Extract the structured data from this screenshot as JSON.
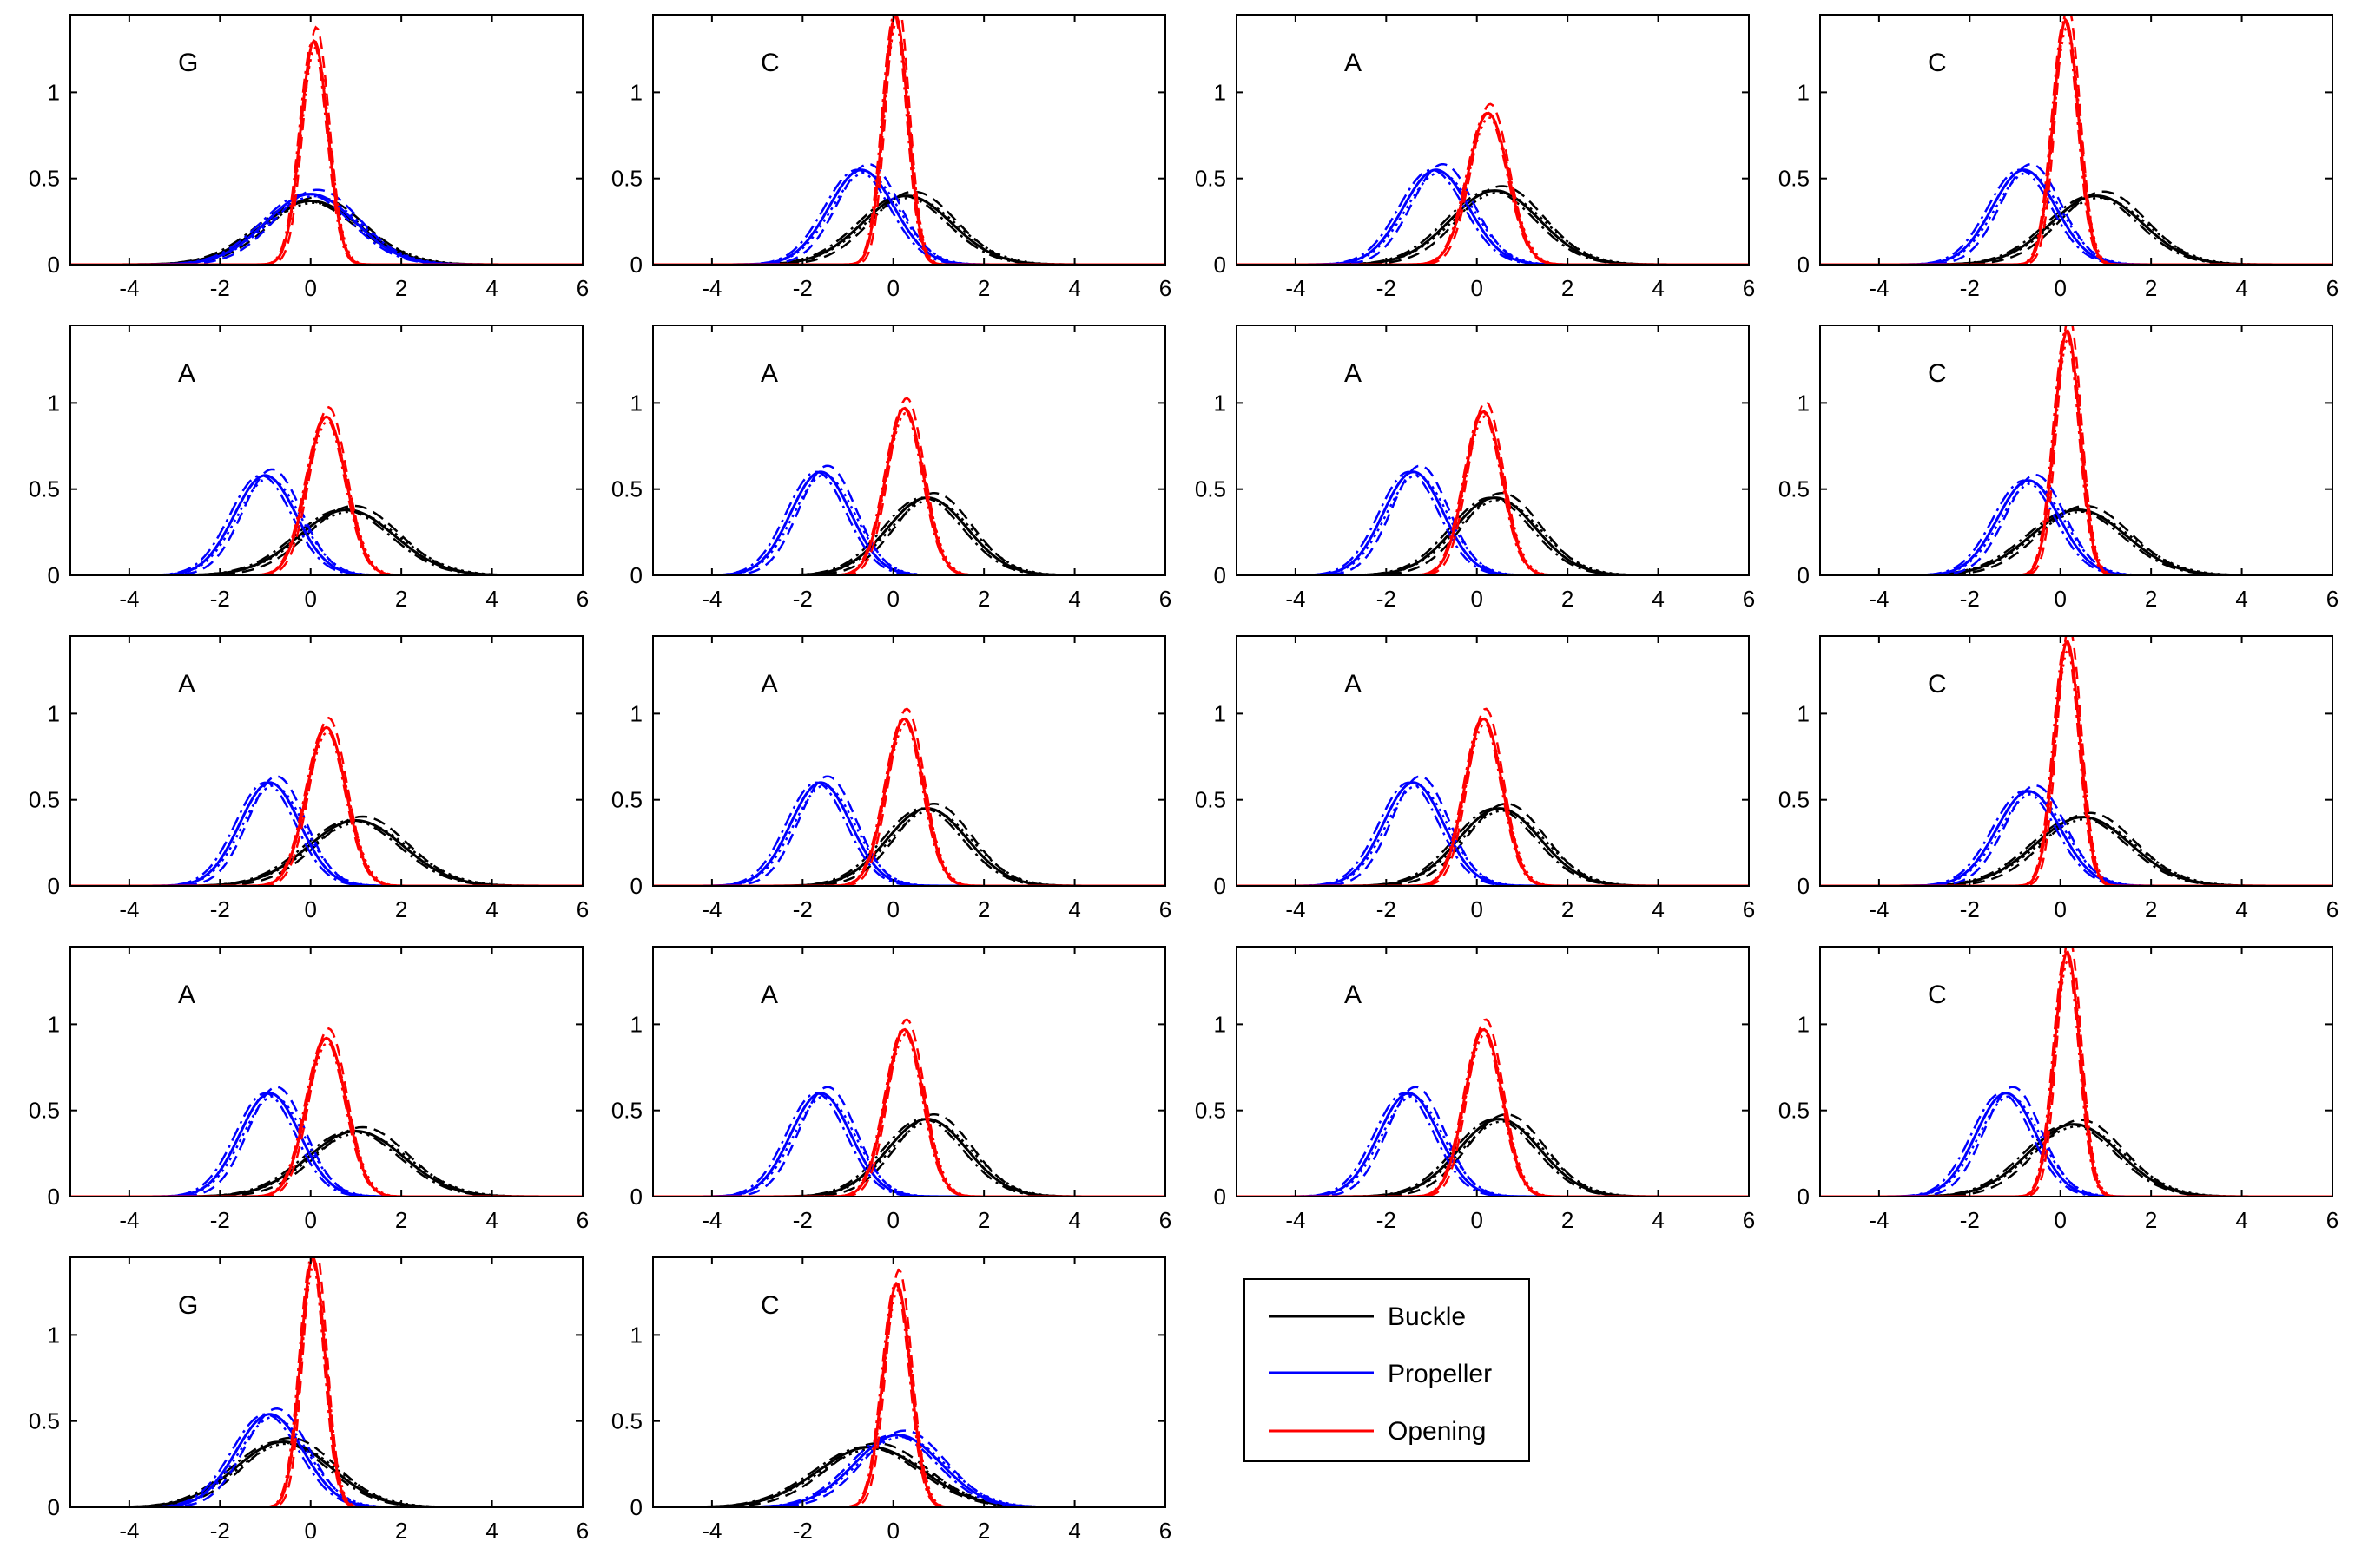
{
  "colors": {
    "buckle": "#000000",
    "propeller": "#0000ff",
    "opening": "#ff0000",
    "axes": "#000000"
  },
  "legend": {
    "placement": "bottom-right",
    "entries": [
      {
        "key": "buckle",
        "label": "Buckle"
      },
      {
        "key": "propeller",
        "label": "Propeller"
      },
      {
        "key": "opening",
        "label": "Opening"
      }
    ]
  },
  "chart_data": {
    "type": "line",
    "layout": "5 rows x 4 columns grid (18 panels)",
    "xlim": [
      -5.3,
      6
    ],
    "ylim": [
      0,
      1.45
    ],
    "xticks": [
      -4,
      -2,
      0,
      2,
      4,
      6
    ],
    "yticks": [
      0,
      0.5,
      1
    ],
    "xtick_labels": [
      "-4",
      "-2",
      "0",
      "2",
      "4",
      "6"
    ],
    "ytick_labels": [
      "0",
      "0.5",
      "1"
    ],
    "line_styles_per_series": [
      "solid",
      "dashed",
      "dash-dot",
      "dotted"
    ],
    "note_series": "each property drawn as four overlapping density curves (solid, dashed, dash-dot, dotted variants)",
    "panels": [
      {
        "label": "G",
        "buckle": {
          "mean": 0.0,
          "sd": 1.08,
          "peak": 0.37
        },
        "propeller": {
          "mean": 0.0,
          "sd": 0.98,
          "peak": 0.41
        },
        "opening": {
          "mean": 0.08,
          "sd": 0.3,
          "peak": 1.3
        }
      },
      {
        "label": "C",
        "buckle": {
          "mean": 0.3,
          "sd": 0.98,
          "peak": 0.4
        },
        "propeller": {
          "mean": -0.7,
          "sd": 0.72,
          "peak": 0.55
        },
        "opening": {
          "mean": 0.05,
          "sd": 0.27,
          "peak": 1.45
        }
      },
      {
        "label": "A",
        "buckle": {
          "mean": 0.4,
          "sd": 0.98,
          "peak": 0.43
        },
        "propeller": {
          "mean": -0.9,
          "sd": 0.72,
          "peak": 0.55
        },
        "opening": {
          "mean": 0.25,
          "sd": 0.44,
          "peak": 0.88
        }
      },
      {
        "label": "C",
        "buckle": {
          "mean": 0.8,
          "sd": 1.0,
          "peak": 0.4
        },
        "propeller": {
          "mean": -0.8,
          "sd": 0.7,
          "peak": 0.55
        },
        "opening": {
          "mean": 0.12,
          "sd": 0.28,
          "peak": 1.42
        }
      },
      {
        "label": "A",
        "buckle": {
          "mean": 0.8,
          "sd": 1.05,
          "peak": 0.38
        },
        "propeller": {
          "mean": -1.0,
          "sd": 0.68,
          "peak": 0.58
        },
        "opening": {
          "mean": 0.35,
          "sd": 0.43,
          "peak": 0.92
        }
      },
      {
        "label": "A",
        "buckle": {
          "mean": 0.75,
          "sd": 0.88,
          "peak": 0.45
        },
        "propeller": {
          "mean": -1.6,
          "sd": 0.66,
          "peak": 0.6
        },
        "opening": {
          "mean": 0.25,
          "sd": 0.41,
          "peak": 0.97
        }
      },
      {
        "label": "A",
        "buckle": {
          "mean": 0.4,
          "sd": 0.9,
          "peak": 0.45
        },
        "propeller": {
          "mean": -1.4,
          "sd": 0.66,
          "peak": 0.6
        },
        "opening": {
          "mean": 0.15,
          "sd": 0.41,
          "peak": 0.95
        }
      },
      {
        "label": "C",
        "buckle": {
          "mean": 0.4,
          "sd": 1.05,
          "peak": 0.38
        },
        "propeller": {
          "mean": -0.7,
          "sd": 0.68,
          "peak": 0.55
        },
        "opening": {
          "mean": 0.15,
          "sd": 0.28,
          "peak": 1.42
        }
      },
      {
        "label": "A",
        "buckle": {
          "mean": 1.0,
          "sd": 1.05,
          "peak": 0.38
        },
        "propeller": {
          "mean": -0.9,
          "sd": 0.66,
          "peak": 0.6
        },
        "opening": {
          "mean": 0.35,
          "sd": 0.43,
          "peak": 0.92
        }
      },
      {
        "label": "A",
        "buckle": {
          "mean": 0.75,
          "sd": 0.88,
          "peak": 0.45
        },
        "propeller": {
          "mean": -1.6,
          "sd": 0.66,
          "peak": 0.6
        },
        "opening": {
          "mean": 0.25,
          "sd": 0.41,
          "peak": 0.97
        }
      },
      {
        "label": "A",
        "buckle": {
          "mean": 0.5,
          "sd": 0.9,
          "peak": 0.45
        },
        "propeller": {
          "mean": -1.4,
          "sd": 0.66,
          "peak": 0.6
        },
        "opening": {
          "mean": 0.15,
          "sd": 0.41,
          "peak": 0.97
        }
      },
      {
        "label": "C",
        "buckle": {
          "mean": 0.5,
          "sd": 1.05,
          "peak": 0.4
        },
        "propeller": {
          "mean": -0.7,
          "sd": 0.7,
          "peak": 0.55
        },
        "opening": {
          "mean": 0.15,
          "sd": 0.28,
          "peak": 1.42
        }
      },
      {
        "label": "A",
        "buckle": {
          "mean": 1.0,
          "sd": 1.05,
          "peak": 0.38
        },
        "propeller": {
          "mean": -0.9,
          "sd": 0.66,
          "peak": 0.6
        },
        "opening": {
          "mean": 0.35,
          "sd": 0.43,
          "peak": 0.92
        }
      },
      {
        "label": "A",
        "buckle": {
          "mean": 0.75,
          "sd": 0.88,
          "peak": 0.45
        },
        "propeller": {
          "mean": -1.6,
          "sd": 0.66,
          "peak": 0.6
        },
        "opening": {
          "mean": 0.25,
          "sd": 0.41,
          "peak": 0.97
        }
      },
      {
        "label": "A",
        "buckle": {
          "mean": 0.5,
          "sd": 0.9,
          "peak": 0.45
        },
        "propeller": {
          "mean": -1.5,
          "sd": 0.66,
          "peak": 0.6
        },
        "opening": {
          "mean": 0.15,
          "sd": 0.41,
          "peak": 0.97
        }
      },
      {
        "label": "C",
        "buckle": {
          "mean": 0.3,
          "sd": 1.0,
          "peak": 0.42
        },
        "propeller": {
          "mean": -1.2,
          "sd": 0.66,
          "peak": 0.6
        },
        "opening": {
          "mean": 0.15,
          "sd": 0.28,
          "peak": 1.42
        }
      },
      {
        "label": "G",
        "buckle": {
          "mean": -0.6,
          "sd": 1.05,
          "peak": 0.38
        },
        "propeller": {
          "mean": -0.9,
          "sd": 0.74,
          "peak": 0.54
        },
        "opening": {
          "mean": 0.05,
          "sd": 0.27,
          "peak": 1.45
        }
      },
      {
        "label": "C",
        "buckle": {
          "mean": -0.5,
          "sd": 1.15,
          "peak": 0.35
        },
        "propeller": {
          "mean": 0.1,
          "sd": 0.95,
          "peak": 0.42
        },
        "opening": {
          "mean": 0.08,
          "sd": 0.3,
          "peak": 1.3
        }
      }
    ]
  }
}
